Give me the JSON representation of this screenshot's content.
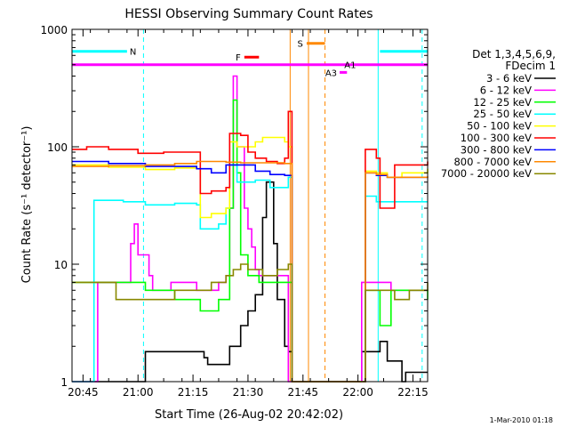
{
  "chart_data": {
    "type": "line",
    "title": "HESSI Observing Summary Count Rates",
    "xlabel": "Start Time (26-Aug-02 20:42:02)",
    "ylabel": "Count Rate (s⁻¹ detector⁻¹)",
    "yscale": "log",
    "ylim": [
      1,
      1000
    ],
    "xlim_minutes": [
      20.0,
      117.0
    ],
    "x_ticks": [
      {
        "label": "20:45",
        "t": 23
      },
      {
        "label": "21:00",
        "t": 38
      },
      {
        "label": "21:15",
        "t": 53
      },
      {
        "label": "21:30",
        "t": 68
      },
      {
        "label": "21:45",
        "t": 83
      },
      {
        "label": "22:00",
        "t": 98
      },
      {
        "label": "22:15",
        "t": 113
      }
    ],
    "y_ticks": [
      {
        "label": "1",
        "v": 1
      },
      {
        "label": "10",
        "v": 10
      },
      {
        "label": "100",
        "v": 100
      },
      {
        "label": "1000",
        "v": 1000
      }
    ],
    "legend": {
      "header": [
        "Det 1,3,4,5,6,9,",
        "FDecim 1"
      ],
      "position": "right"
    },
    "series": [
      {
        "name": "3 - 6 keV",
        "color": "#000000",
        "t": [
          20,
          39,
          40,
          56,
          57,
          63,
          66,
          68,
          70,
          72,
          73,
          75,
          76,
          78,
          79,
          80,
          84,
          98,
          99,
          104,
          106,
          110,
          111,
          117
        ],
        "v": [
          1,
          1,
          1.8,
          1.6,
          1.4,
          2,
          3,
          4,
          5.5,
          25,
          50,
          15,
          5,
          2,
          1.8,
          1,
          1,
          1,
          1.8,
          2.2,
          1.5,
          1,
          1.2,
          1.2
        ]
      },
      {
        "name": "6 - 12 keV",
        "color": "#ff00ff",
        "t": [
          20,
          26,
          27,
          34,
          36,
          37,
          38,
          41,
          42,
          47,
          54,
          56,
          58,
          60,
          62,
          63,
          64,
          65,
          67,
          68,
          69,
          70,
          71,
          73,
          75,
          77,
          79,
          80,
          84,
          98,
          99,
          101,
          104,
          107,
          110,
          114,
          117
        ],
        "v": [
          1,
          1,
          7,
          7,
          15,
          22,
          12,
          8,
          6,
          7,
          6,
          6,
          6,
          7,
          8,
          30,
          400,
          100,
          30,
          20,
          14,
          9,
          8,
          8,
          8,
          8,
          1,
          1,
          1,
          1,
          7,
          7,
          7,
          6,
          6,
          6,
          6
        ]
      },
      {
        "name": "12 - 25 keV",
        "color": "#00ff00",
        "t": [
          20,
          30,
          40,
          48,
          54,
          55,
          60,
          62,
          63,
          64,
          65,
          66,
          68,
          71,
          75,
          79,
          80,
          84,
          99,
          100,
          103,
          104,
          106,
          107,
          117
        ],
        "v": [
          7,
          7,
          6,
          5,
          5,
          4,
          5,
          5,
          30,
          250,
          60,
          12,
          8,
          7,
          7,
          7,
          1,
          1,
          1,
          6,
          6,
          3,
          3,
          6,
          5
        ]
      },
      {
        "name": "25 - 50 keV",
        "color": "#00ffff",
        "t": [
          20,
          26,
          34,
          40,
          48,
          54,
          55,
          60,
          62,
          63,
          65,
          70,
          74,
          77,
          79,
          80,
          84,
          99,
          100,
          103,
          105,
          106,
          117
        ],
        "v": [
          1,
          35,
          34,
          32,
          33,
          32,
          20,
          22,
          30,
          70,
          50,
          52,
          45,
          45,
          55,
          1,
          1,
          1,
          38,
          34,
          34,
          34,
          34
        ]
      },
      {
        "name": "50 - 100 keV",
        "color": "#ffff00",
        "t": [
          20,
          30,
          40,
          48,
          54,
          55,
          58,
          62,
          63,
          65,
          68,
          70,
          72,
          75,
          78,
          79,
          80,
          84,
          100,
          103,
          105,
          106,
          110,
          117
        ],
        "v": [
          70,
          67,
          64,
          66,
          65,
          25,
          27,
          30,
          110,
          100,
          100,
          110,
          120,
          120,
          110,
          100,
          1,
          1,
          62,
          60,
          60,
          55,
          60,
          65
        ]
      },
      {
        "name": "100 - 300 keV",
        "color": "#ff0000",
        "t": [
          20,
          24,
          30,
          38,
          45,
          54,
          55,
          58,
          62,
          63,
          66,
          68,
          70,
          73,
          76,
          78,
          79,
          80,
          84,
          100,
          103,
          104,
          106,
          108,
          117
        ],
        "v": [
          95,
          100,
          95,
          88,
          90,
          90,
          40,
          42,
          45,
          130,
          125,
          90,
          80,
          75,
          72,
          80,
          200,
          1,
          1,
          95,
          80,
          30,
          30,
          70,
          75
        ]
      },
      {
        "name": "300 - 800 keV",
        "color": "#0000ff",
        "t": [
          20,
          30,
          40,
          48,
          54,
          58,
          62,
          66,
          70,
          74,
          78,
          80,
          84,
          100,
          103,
          106,
          108,
          117
        ],
        "v": [
          75,
          72,
          68,
          68,
          65,
          60,
          70,
          70,
          62,
          58,
          57,
          1,
          1,
          60,
          57,
          55,
          55,
          55
        ]
      },
      {
        "name": "800 - 7000 keV",
        "color": "#ff8800",
        "t": [
          20,
          30,
          40,
          48,
          54,
          55,
          58,
          62,
          66,
          70,
          74,
          78,
          80,
          84,
          100,
          103,
          106,
          110,
          117
        ],
        "v": [
          68,
          69,
          70,
          72,
          75,
          75,
          75,
          74,
          73,
          73,
          73,
          72,
          1,
          1,
          60,
          58,
          55,
          55,
          56
        ]
      },
      {
        "name": "7000 - 20000 keV",
        "color": "#888800",
        "t": [
          20,
          27,
          32,
          40,
          48,
          54,
          58,
          62,
          64,
          66,
          68,
          72,
          76,
          79,
          80,
          84,
          99,
          100,
          104,
          108,
          112,
          117
        ],
        "v": [
          7,
          7,
          5,
          5,
          6,
          6,
          7,
          8,
          9,
          10,
          9,
          8,
          9,
          10,
          1,
          1,
          1,
          6,
          6,
          5,
          6,
          7
        ]
      }
    ],
    "flags": [
      {
        "label": "N",
        "color": "#00ffff",
        "t0": 20,
        "t1": 35,
        "v": 650,
        "style": "bar"
      },
      {
        "label": "",
        "color": "#00ffff",
        "t0": 104,
        "t1": 117,
        "v": 650,
        "style": "bar"
      },
      {
        "label": "S",
        "color": "#ff8800",
        "t0": 84,
        "t1": 89,
        "v": 760,
        "style": "bar"
      },
      {
        "label": "F",
        "color": "#ff0000",
        "t0": 67,
        "t1": 71,
        "v": 580,
        "style": "bar"
      },
      {
        "label": "A1",
        "color": "#ff00ff",
        "t0": 20,
        "t1": 117,
        "v": 500,
        "style": "bar"
      },
      {
        "label": "A3",
        "color": "#ff00ff",
        "t0": 93,
        "t1": 95,
        "v": 430,
        "style": "bar"
      }
    ],
    "vlines": [
      {
        "t": 39.5,
        "color": "#00ffff",
        "dash": true
      },
      {
        "t": 79.5,
        "color": "#ff8800",
        "dash": false
      },
      {
        "t": 84.5,
        "color": "#ff8800",
        "dash": false
      },
      {
        "t": 89,
        "color": "#ff8800",
        "dash": true
      },
      {
        "t": 103.5,
        "color": "#00ffff",
        "dash": false
      },
      {
        "t": 115.5,
        "color": "#00ffff",
        "dash": true
      }
    ]
  },
  "footer": {
    "date": "1-Mar-2010 01:18"
  }
}
